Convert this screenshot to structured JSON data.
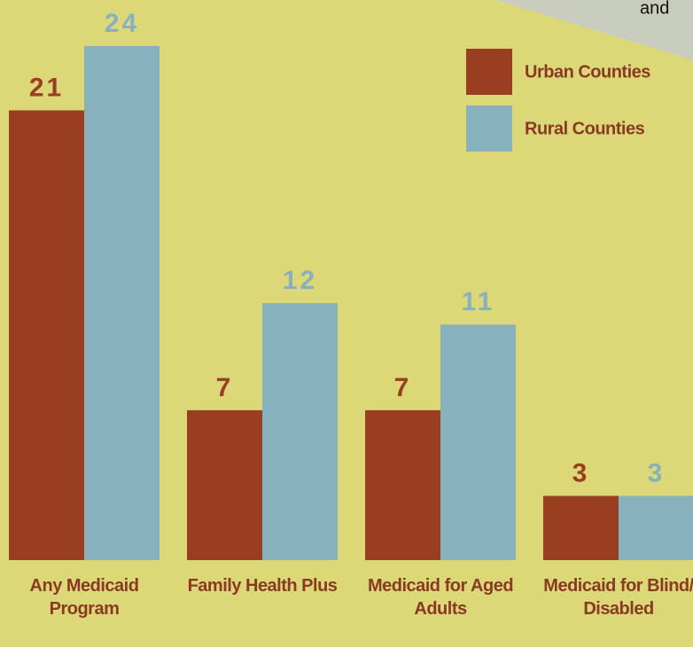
{
  "chart_data": {
    "type": "bar",
    "annotation": "and",
    "categories": [
      "Any Medicaid Program",
      "Family Health Plus",
      "Medicaid for Aged Adults",
      "Medicaid for Blind/ Disabled"
    ],
    "series": [
      {
        "name": "Urban Counties",
        "color": "#9a3e22",
        "values": [
          21,
          7,
          7,
          3
        ]
      },
      {
        "name": "Rural Counties",
        "color": "#87b1bc",
        "values": [
          24,
          12,
          11,
          3
        ]
      }
    ],
    "ylim": [
      0,
      24
    ]
  }
}
